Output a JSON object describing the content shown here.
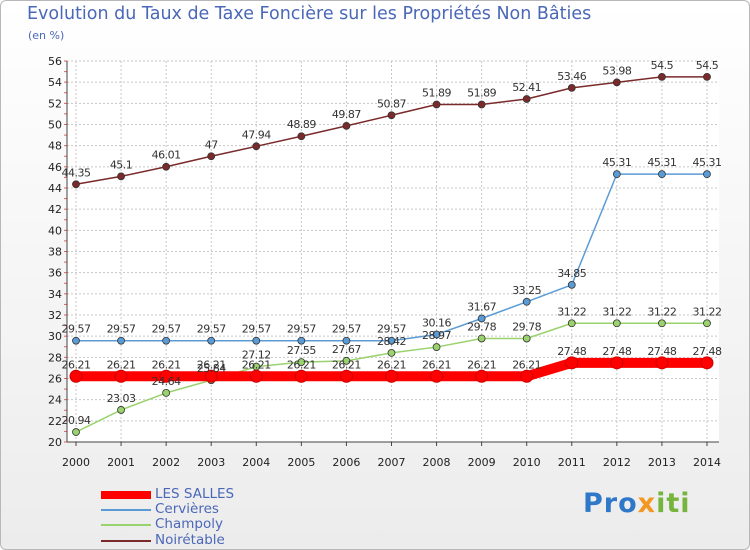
{
  "header": {
    "title": "Evolution du Taux de Taxe Foncière sur les Propriétés Non Bâties",
    "subtitle": "(en %)"
  },
  "brand": {
    "part1": "Pro",
    "part2": "x",
    "part3": "iti"
  },
  "chart_data": {
    "type": "line",
    "title": "Evolution du Taux de Taxe Foncière sur les Propriétés Non Bâties",
    "ylabel": "(en %)",
    "xlabel": "",
    "ylim": [
      20,
      56
    ],
    "ytick_step": 2,
    "grid": true,
    "legend_position": "bottom-left",
    "x": [
      "2000",
      "2001",
      "2002",
      "2003",
      "2004",
      "2005",
      "2006",
      "2007",
      "2008",
      "2009",
      "2010",
      "2011",
      "2012",
      "2013",
      "2014"
    ],
    "series": [
      {
        "name": "LES SALLES",
        "color": "#ff0000",
        "thick": true,
        "values": [
          26.21,
          26.21,
          26.21,
          26.21,
          26.21,
          26.21,
          26.21,
          26.21,
          26.21,
          26.21,
          26.21,
          27.48,
          27.48,
          27.48,
          27.48
        ]
      },
      {
        "name": "Cervières",
        "color": "#5b9bd5",
        "values": [
          29.57,
          29.57,
          29.57,
          29.57,
          29.57,
          29.57,
          29.57,
          29.57,
          30.16,
          31.67,
          33.25,
          34.85,
          45.31,
          45.31,
          45.31
        ]
      },
      {
        "name": "Champoly",
        "color": "#9ad26e",
        "values": [
          20.94,
          23.03,
          24.64,
          25.84,
          27.12,
          27.55,
          27.67,
          28.42,
          28.97,
          29.78,
          29.78,
          31.22,
          31.22,
          31.22,
          31.22
        ]
      },
      {
        "name": "Noirétable",
        "color": "#7a2a2a",
        "values": [
          44.35,
          45.1,
          46.01,
          47,
          47.94,
          48.89,
          49.87,
          50.87,
          51.89,
          51.89,
          52.41,
          53.46,
          53.98,
          54.5,
          54.5
        ]
      }
    ]
  }
}
